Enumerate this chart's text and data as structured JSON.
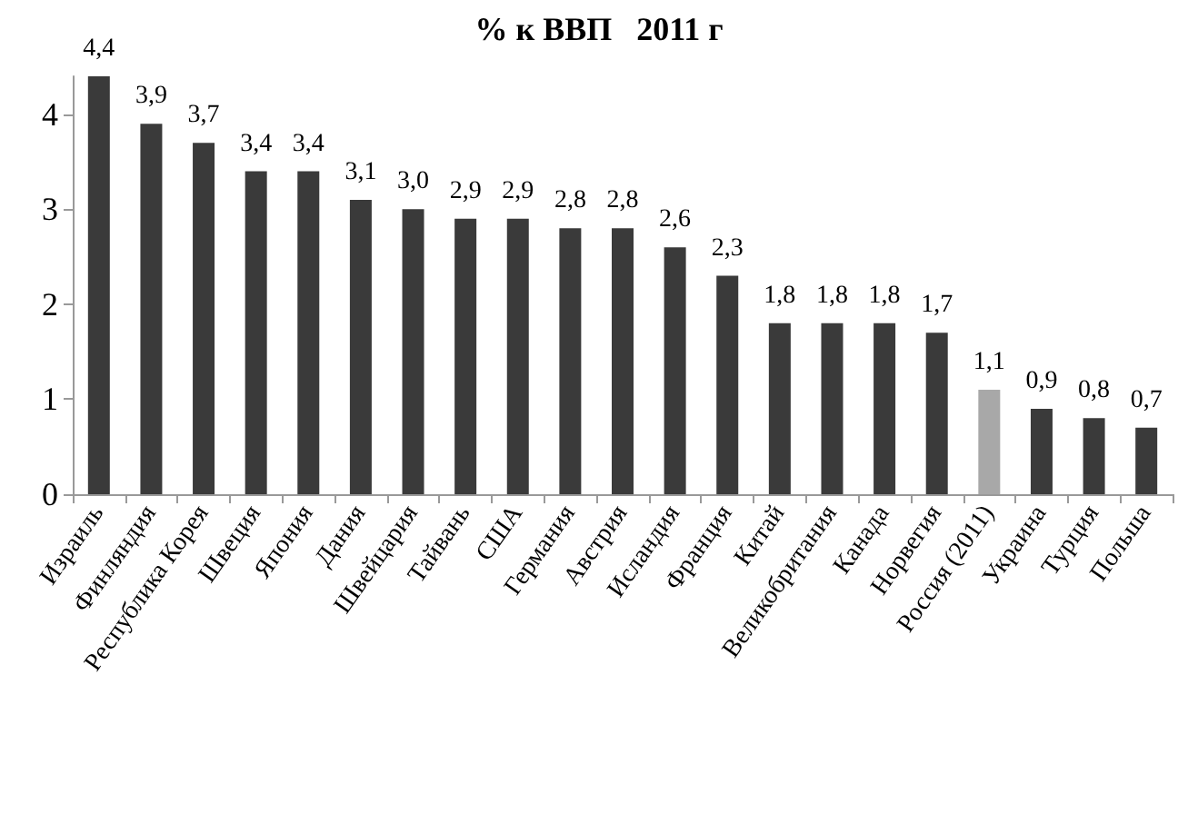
{
  "chart_data": {
    "type": "bar",
    "title": "% к ВВП   2011 г",
    "categories": [
      "Израиль",
      "Финляндия",
      "Республика Корея",
      "Швеция",
      "Япония",
      "Дания",
      "Швейцария",
      "Тайвань",
      "США",
      "Германия",
      "Австрия",
      "Исландия",
      "Франция",
      "Китай",
      "Великобритания",
      "Канада",
      "Норвегия",
      "Россия (2011)",
      "Украина",
      "Турция",
      "Польша"
    ],
    "values": [
      4.4,
      3.9,
      3.7,
      3.4,
      3.4,
      3.1,
      3.0,
      2.9,
      2.9,
      2.8,
      2.8,
      2.6,
      2.3,
      1.8,
      1.8,
      1.8,
      1.7,
      1.1,
      0.9,
      0.8,
      0.7
    ],
    "value_labels": [
      "4,4",
      "3,9",
      "3,7",
      "3,4",
      "3,4",
      "3,1",
      "3,0",
      "2,9",
      "2,9",
      "2,8",
      "2,8",
      "2,6",
      "2,3",
      "1,8",
      "1,8",
      "1,8",
      "1,7",
      "1,1",
      "0,9",
      "0,8",
      "0,7"
    ],
    "colors": [
      "#3a3a3a",
      "#3a3a3a",
      "#3a3a3a",
      "#3a3a3a",
      "#3a3a3a",
      "#3a3a3a",
      "#3a3a3a",
      "#3a3a3a",
      "#3a3a3a",
      "#3a3a3a",
      "#3a3a3a",
      "#3a3a3a",
      "#3a3a3a",
      "#3a3a3a",
      "#3a3a3a",
      "#3a3a3a",
      "#3a3a3a",
      "#a8a8a8",
      "#3a3a3a",
      "#3a3a3a",
      "#3a3a3a"
    ],
    "ylim": [
      0,
      4.4
    ],
    "yticks": [
      0,
      1,
      2,
      3,
      4
    ],
    "grid": false
  }
}
